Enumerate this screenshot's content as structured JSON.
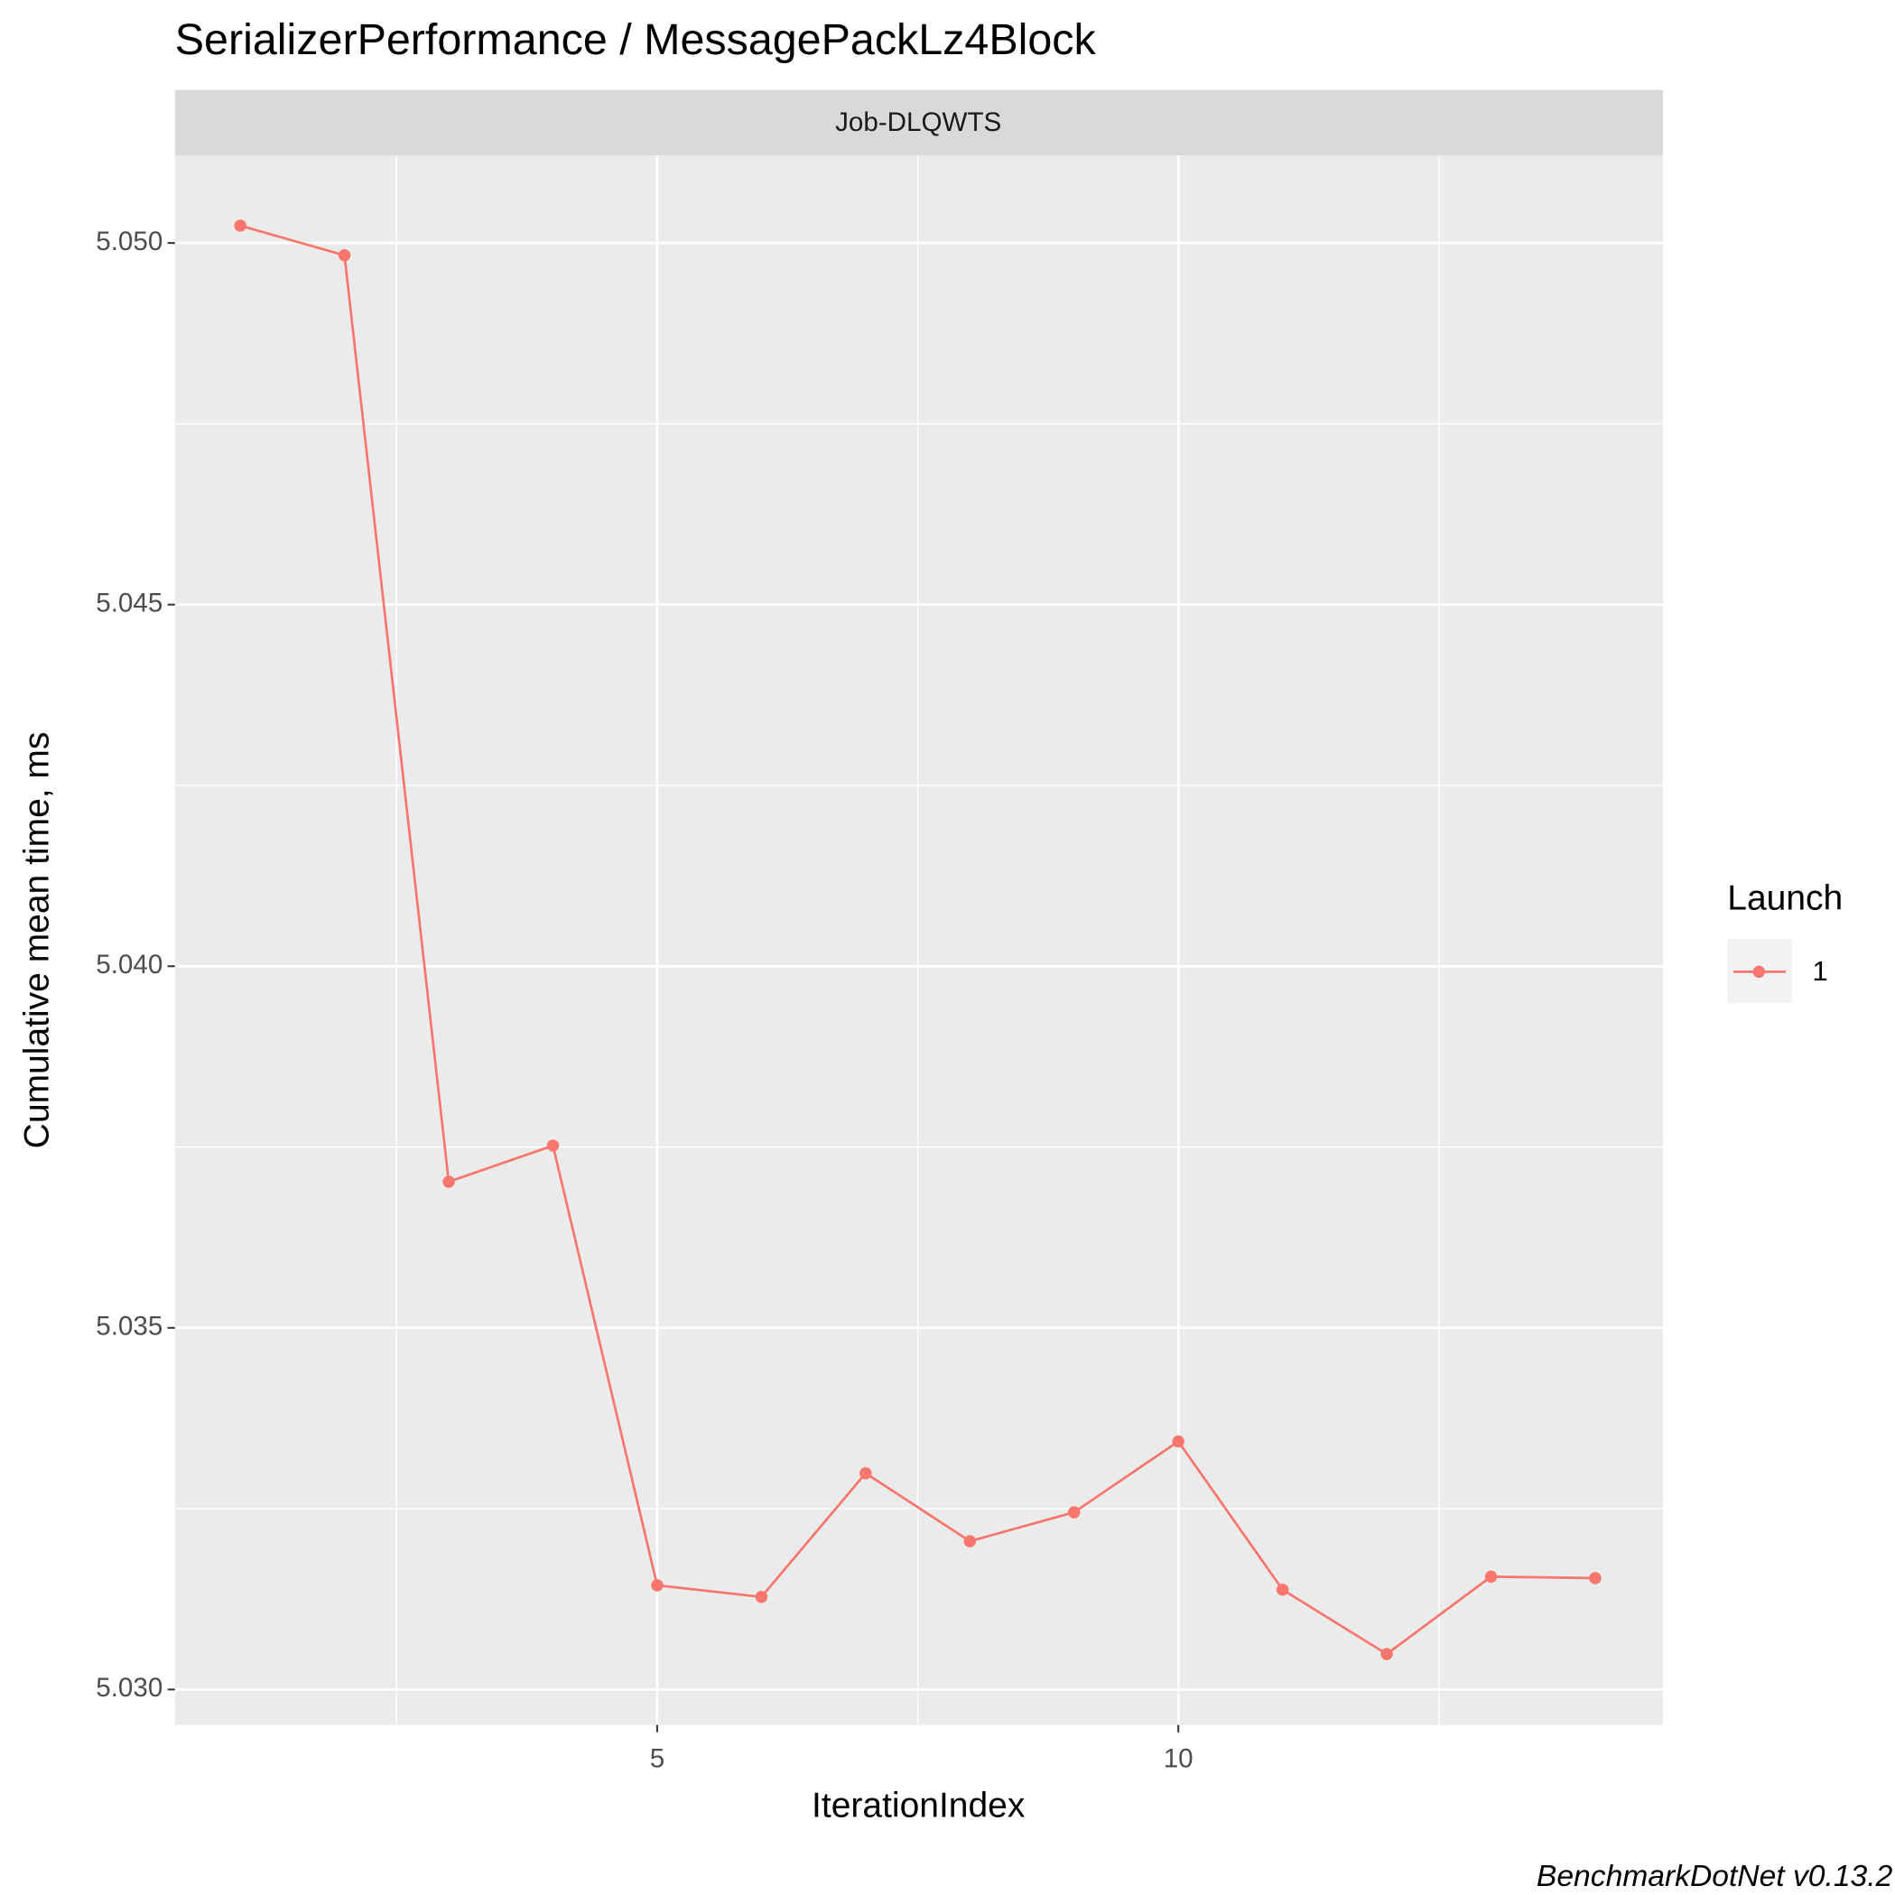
{
  "chart_data": {
    "type": "line",
    "title": "SerializerPerformance / MessagePackLz4Block",
    "facet": "Job-DLQWTS",
    "x_label": "IterationIndex",
    "y_label": "Cumulative mean time, ms",
    "caption": "BenchmarkDotNet v0.13.2",
    "legend_title": "Launch",
    "legend_position": "right",
    "grid": true,
    "x": [
      1,
      2,
      3,
      4,
      5,
      6,
      7,
      8,
      9,
      10,
      11,
      12,
      13,
      14
    ],
    "series": [
      {
        "name": "1",
        "color": "#F8766D",
        "values": [
          5.05024,
          5.04983,
          5.03702,
          5.03752,
          5.03144,
          5.03128,
          5.03299,
          5.03205,
          5.03245,
          5.03343,
          5.03138,
          5.03049,
          5.03156,
          5.03154
        ]
      }
    ],
    "xlim": [
      0.373,
      14.65
    ],
    "xticks": [
      5,
      10
    ],
    "ylim": [
      5.02951,
      5.05121
    ],
    "yticks": [
      {
        "value": 5.03,
        "label": "5.030"
      },
      5.035,
      {
        "value": 5.04,
        "label": "5.040"
      },
      5.045,
      {
        "value": 5.05,
        "label": "5.050"
      }
    ]
  }
}
